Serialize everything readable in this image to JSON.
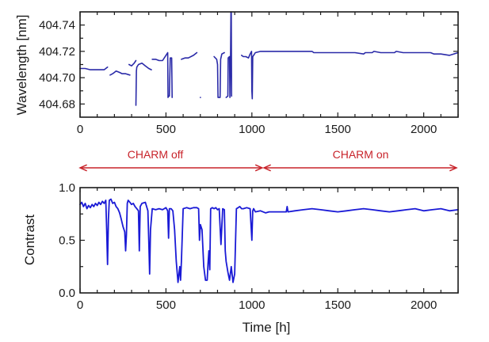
{
  "chart_data": [
    {
      "type": "line",
      "panel": "top",
      "title": "",
      "xlabel": "",
      "ylabel": "Wavelength [nm]",
      "xlim": [
        0,
        2200
      ],
      "ylim": [
        404.67,
        404.75
      ],
      "xticks": [
        0,
        500,
        1000,
        1500,
        2000
      ],
      "xtick_labels": [
        "0",
        "500",
        "1000",
        "1500",
        "2000"
      ],
      "yticks": [
        404.68,
        404.7,
        404.72,
        404.74
      ],
      "ytick_labels": [
        "404.68",
        "404.70",
        "404.72",
        "404.74"
      ],
      "grid": false,
      "color": "#2a2aa8",
      "series": [
        {
          "name": "segment-1",
          "x": [
            0,
            30,
            60,
            100,
            140,
            150,
            160
          ],
          "y": [
            404.707,
            404.707,
            404.706,
            404.706,
            404.706,
            404.707,
            404.708
          ]
        },
        {
          "name": "segment-2",
          "x": [
            175,
            190,
            210,
            230,
            245,
            265,
            290
          ],
          "y": [
            404.702,
            404.703,
            404.705,
            404.704,
            404.703,
            404.703,
            404.702
          ]
        },
        {
          "name": "segment-3",
          "x": [
            285,
            300,
            315,
            325
          ],
          "y": [
            404.71,
            404.709,
            404.711,
            404.713
          ]
        },
        {
          "name": "segment-4",
          "x": [
            325,
            328,
            330,
            340,
            360,
            380,
            400,
            415
          ],
          "y": [
            404.679,
            404.705,
            404.708,
            404.71,
            404.711,
            404.709,
            404.707,
            404.706
          ]
        },
        {
          "name": "segment-5",
          "x": [
            420,
            440,
            460,
            480,
            500,
            510,
            512,
            515,
            520,
            525,
            530,
            533,
            536
          ],
          "y": [
            404.714,
            404.714,
            404.713,
            404.713,
            404.717,
            404.719,
            404.685,
            404.686,
            404.686,
            404.715,
            404.715,
            404.715,
            404.685
          ]
        },
        {
          "name": "segment-6",
          "x": [
            590,
            610,
            630,
            660,
            680
          ],
          "y": [
            404.714,
            404.715,
            404.715,
            404.717,
            404.719
          ]
        },
        {
          "name": "segment-7",
          "x": [
            700,
            700.5
          ],
          "y": [
            404.685,
            404.685
          ]
        },
        {
          "name": "segment-8",
          "x": [
            780,
            795,
            800,
            803,
            815,
            818,
            825,
            840
          ],
          "y": [
            404.716,
            404.714,
            404.71,
            404.685,
            404.685,
            404.714,
            404.718,
            404.719
          ]
        },
        {
          "name": "segment-9",
          "x": [
            850,
            860,
            862,
            870,
            872,
            876,
            878,
            880,
            882
          ],
          "y": [
            404.685,
            404.686,
            404.715,
            404.716,
            404.685,
            404.716,
            404.75,
            404.75,
            404.686
          ]
        },
        {
          "name": "segment-10",
          "x": [
            940,
            950,
            965,
            980,
            990,
            998,
            1000,
            1002,
            1005,
            1010,
            1020,
            1050,
            1100,
            1200,
            1300,
            1350,
            1360,
            1450,
            1500,
            1560,
            1600,
            1650,
            1660,
            1700,
            1710,
            1750,
            1780,
            1830,
            1840,
            1880,
            1900,
            1950,
            2000,
            2040,
            2060,
            2080,
            2100,
            2150,
            2200
          ],
          "y": [
            404.717,
            404.716,
            404.716,
            404.715,
            404.718,
            404.72,
            404.69,
            404.684,
            404.716,
            404.717,
            404.719,
            404.72,
            404.72,
            404.72,
            404.72,
            404.72,
            404.719,
            404.719,
            404.719,
            404.719,
            404.719,
            404.718,
            404.719,
            404.719,
            404.72,
            404.719,
            404.719,
            404.719,
            404.72,
            404.719,
            404.719,
            404.719,
            404.719,
            404.719,
            404.718,
            404.718,
            404.718,
            404.717,
            404.719
          ]
        }
      ]
    },
    {
      "type": "line",
      "panel": "bottom",
      "title": "",
      "xlabel": "Time [h]",
      "ylabel": "Contrast",
      "xlim": [
        0,
        2200
      ],
      "ylim": [
        0.0,
        1.0
      ],
      "xticks": [
        0,
        500,
        1000,
        1500,
        2000
      ],
      "xtick_labels": [
        "0",
        "500",
        "1000",
        "1500",
        "2000"
      ],
      "yticks": [
        0.0,
        0.5,
        1.0
      ],
      "ytick_labels": [
        "0.0",
        "0.5",
        "1.0"
      ],
      "grid": false,
      "color": "#1a1ad6",
      "series": [
        {
          "name": "contrast",
          "x": [
            0,
            10,
            20,
            30,
            40,
            50,
            60,
            70,
            80,
            90,
            100,
            110,
            120,
            130,
            140,
            150,
            155,
            160,
            165,
            170,
            180,
            190,
            200,
            210,
            220,
            230,
            240,
            250,
            260,
            265,
            270,
            275,
            280,
            290,
            300,
            310,
            320,
            330,
            340,
            345,
            350,
            360,
            380,
            395,
            400,
            405,
            410,
            420,
            440,
            460,
            480,
            500,
            510,
            515,
            520,
            530,
            540,
            550,
            560,
            570,
            580,
            585,
            590,
            600,
            620,
            640,
            660,
            680,
            690,
            695,
            700,
            710,
            720,
            730,
            740,
            745,
            750,
            755,
            760,
            770,
            780,
            790,
            800,
            810,
            820,
            830,
            840,
            845,
            850,
            860,
            870,
            880,
            890,
            900,
            910,
            920,
            930,
            940,
            950,
            970,
            990,
            1000,
            1005,
            1010,
            1020,
            1050,
            1080,
            1100,
            1150,
            1200,
            1205,
            1210,
            1250,
            1300,
            1350,
            1400,
            1450,
            1500,
            1550,
            1600,
            1650,
            1700,
            1750,
            1800,
            1850,
            1900,
            1950,
            2000,
            2050,
            2100,
            2150,
            2200
          ],
          "y": [
            0.84,
            0.86,
            0.82,
            0.85,
            0.8,
            0.83,
            0.81,
            0.84,
            0.82,
            0.85,
            0.83,
            0.86,
            0.84,
            0.87,
            0.85,
            0.88,
            0.6,
            0.27,
            0.7,
            0.88,
            0.89,
            0.85,
            0.86,
            0.82,
            0.8,
            0.76,
            0.7,
            0.63,
            0.58,
            0.4,
            0.55,
            0.85,
            0.88,
            0.86,
            0.84,
            0.85,
            0.82,
            0.8,
            0.78,
            0.4,
            0.82,
            0.85,
            0.86,
            0.78,
            0.5,
            0.18,
            0.6,
            0.8,
            0.79,
            0.8,
            0.79,
            0.81,
            0.78,
            0.52,
            0.8,
            0.8,
            0.78,
            0.6,
            0.3,
            0.1,
            0.25,
            0.12,
            0.3,
            0.8,
            0.81,
            0.8,
            0.81,
            0.81,
            0.8,
            0.5,
            0.65,
            0.6,
            0.25,
            0.12,
            0.12,
            0.28,
            0.4,
            0.22,
            0.8,
            0.81,
            0.8,
            0.81,
            0.79,
            0.8,
            0.46,
            0.8,
            0.79,
            0.4,
            0.3,
            0.2,
            0.12,
            0.25,
            0.1,
            0.18,
            0.8,
            0.81,
            0.82,
            0.8,
            0.8,
            0.81,
            0.8,
            0.5,
            0.78,
            0.8,
            0.77,
            0.78,
            0.76,
            0.77,
            0.77,
            0.77,
            0.82,
            0.77,
            0.78,
            0.79,
            0.8,
            0.79,
            0.78,
            0.77,
            0.78,
            0.79,
            0.8,
            0.79,
            0.78,
            0.77,
            0.78,
            0.79,
            0.8,
            0.78,
            0.79,
            0.8,
            0.78,
            0.79
          ]
        }
      ]
    }
  ],
  "annotations": {
    "charm_off": {
      "label": "CHARM off",
      "x_range_h": [
        0,
        1060
      ]
    },
    "charm_on": {
      "label": "CHARM on",
      "x_range_h": [
        1070,
        2200
      ]
    },
    "color": "#c8232a"
  }
}
